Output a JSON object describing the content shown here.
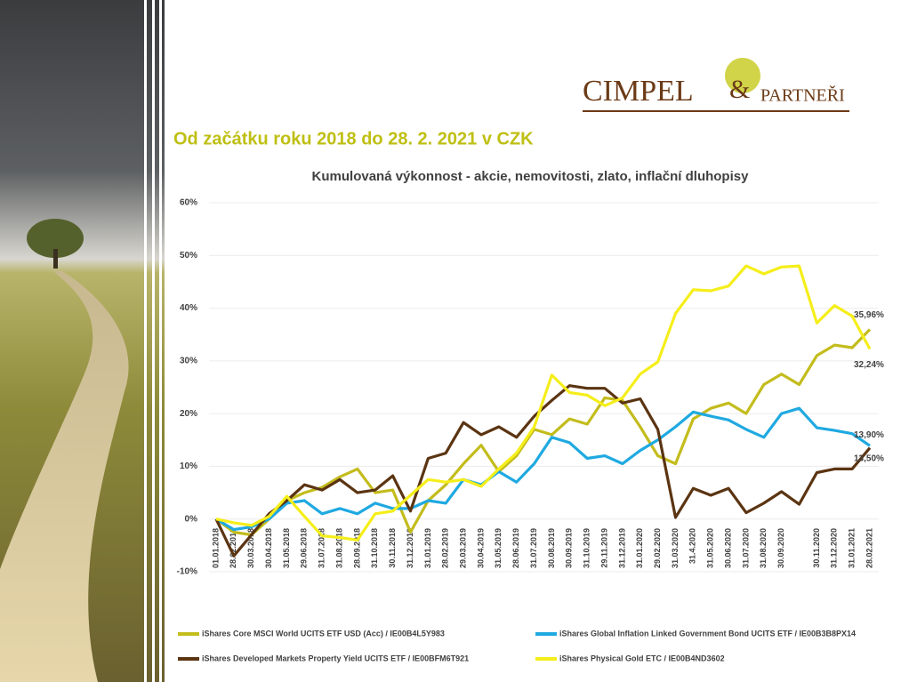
{
  "heading": "Od začátku roku 2018 do 28. 2. 2021 v CZK",
  "logo": {
    "name": "CIMPEL",
    "amp": "&",
    "partners": "PARTNEŘI"
  },
  "chart_data": {
    "type": "line",
    "title": "Kumulovaná výkonnost - akcie, nemovitosti, zlato, inflační dluhopisy",
    "categories": [
      "01.01.2018",
      "28.02.2018",
      "30.03.2018",
      "30.04.2018",
      "31.05.2018",
      "29.06.2018",
      "31.07.2018",
      "31.08.2018",
      "28.09.2018",
      "31.10.2018",
      "30.11.2018",
      "31.12.2018",
      "31.01.2019",
      "28.02.2019",
      "29.03.2019",
      "30.04.2019",
      "31.05.2019",
      "28.06.2019",
      "31.07.2019",
      "30.08.2019",
      "30.09.2019",
      "31.10.2019",
      "29.11.2019",
      "31.12.2019",
      "31.01.2020",
      "29.02.2020",
      "31.03.2020",
      "31.4.2020",
      "31.05.2020",
      "30.06.2020",
      "31.07.2020",
      "31.08.2020",
      "30.09.2020",
      null,
      "30.11.2020",
      "31.12.2020",
      "31.01.2021",
      "28.02.2021"
    ],
    "ylim": [
      -10,
      60
    ],
    "yticks": [
      {
        "value": -10,
        "label": "-10%"
      },
      {
        "value": 0,
        "label": "0%"
      },
      {
        "value": 10,
        "label": "10%"
      },
      {
        "value": 20,
        "label": "20%"
      },
      {
        "value": 30,
        "label": "30%"
      },
      {
        "value": 40,
        "label": "40%"
      },
      {
        "value": 50,
        "label": "50%"
      },
      {
        "value": 60,
        "label": "60%"
      }
    ],
    "grid": true,
    "legend": "bottom",
    "series": [
      {
        "name": "iShares Core MSCI World UCITS ETF USD (Acc) / IE00B4L5Y983",
        "color": "#c3bc1c",
        "values": [
          0,
          -2.5,
          -3,
          0,
          3.5,
          5,
          6,
          8,
          9.5,
          5,
          5.5,
          -2.5,
          3.5,
          6.5,
          10.5,
          14,
          9,
          12,
          17,
          16,
          19,
          18,
          23,
          22.5,
          17.5,
          12,
          10.5,
          19,
          21,
          22,
          20,
          25.5,
          27.5,
          25.5,
          31,
          33,
          32.5,
          35.96
        ],
        "value_labels": [
          null,
          null,
          null,
          null,
          null,
          null,
          null,
          null,
          null,
          null,
          null,
          null,
          null,
          null,
          null,
          null,
          null,
          null,
          null,
          null,
          null,
          null,
          null,
          null,
          null,
          null,
          null,
          null,
          null,
          null,
          null,
          null,
          null,
          null,
          null,
          null,
          null,
          "35,96%"
        ]
      },
      {
        "name": "iShares Global Inflation Linked Government Bond UCITS ETF / IE00B3B8PX14",
        "color": "#1fa9e1",
        "values": [
          0,
          -2,
          -1.5,
          0,
          3,
          3.5,
          1,
          2,
          1,
          3,
          2,
          2,
          3.5,
          3,
          7.5,
          6.5,
          9,
          7,
          10.5,
          15.5,
          14.5,
          11.5,
          12,
          10.5,
          13,
          15,
          17.5,
          20.3,
          19.5,
          18.8,
          17,
          15.5,
          20,
          21,
          17.3,
          16.8,
          16.2,
          13.9
        ],
        "value_labels": [
          null,
          null,
          null,
          null,
          null,
          null,
          null,
          null,
          null,
          null,
          null,
          null,
          null,
          null,
          null,
          null,
          null,
          null,
          null,
          null,
          null,
          null,
          null,
          null,
          null,
          null,
          null,
          null,
          null,
          null,
          null,
          null,
          null,
          null,
          null,
          null,
          null,
          "13,90%"
        ]
      },
      {
        "name": "iShares Developed Markets Property Yield UCITS ETF / IE00BFM6T921",
        "color": "#5b3412",
        "values": [
          0,
          -7,
          -3,
          1,
          3.5,
          6.5,
          5.5,
          7.5,
          5,
          5.5,
          8.2,
          1.5,
          11.5,
          12.5,
          18.3,
          16,
          17.5,
          15.5,
          19.5,
          22.5,
          25.3,
          24.8,
          24.8,
          22,
          22.8,
          17,
          0.3,
          5.8,
          4.5,
          5.8,
          1.2,
          3,
          5.2,
          2.8,
          8.8,
          9.5,
          9.5,
          13.5
        ],
        "value_labels": [
          null,
          null,
          null,
          null,
          null,
          null,
          null,
          null,
          null,
          null,
          null,
          null,
          null,
          null,
          null,
          null,
          null,
          null,
          null,
          null,
          null,
          null,
          null,
          null,
          null,
          null,
          null,
          null,
          null,
          null,
          null,
          null,
          null,
          null,
          null,
          null,
          null,
          "13,50%"
        ]
      },
      {
        "name": "iShares Physical Gold ETC / IE00B4ND3602",
        "color": "#f5ee1a",
        "values": [
          0,
          -0.7,
          -1.2,
          0.5,
          4.3,
          0.5,
          -3.2,
          -3.5,
          -4,
          1,
          1.5,
          4.5,
          7.5,
          7,
          7.5,
          6.2,
          9.5,
          12.5,
          17.5,
          27.3,
          24,
          23.5,
          21.5,
          23,
          27.5,
          29.8,
          39,
          43.5,
          43.3,
          44.2,
          48,
          46.5,
          47.8,
          48,
          37.2,
          40.5,
          38.5,
          32.24
        ],
        "value_labels": [
          null,
          null,
          null,
          null,
          null,
          null,
          null,
          null,
          null,
          null,
          null,
          null,
          null,
          null,
          null,
          null,
          null,
          null,
          null,
          null,
          null,
          null,
          null,
          null,
          null,
          null,
          null,
          null,
          null,
          null,
          null,
          null,
          null,
          null,
          null,
          null,
          null,
          "32,24%"
        ]
      }
    ]
  }
}
